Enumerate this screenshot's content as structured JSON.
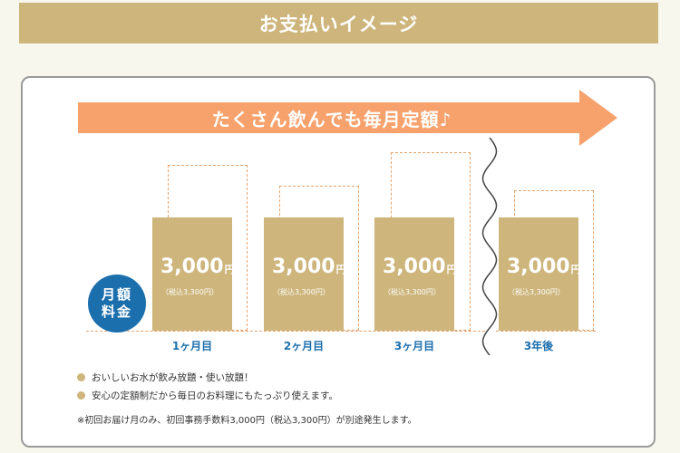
{
  "header": {
    "title": "お支払いイメージ"
  },
  "banner": {
    "text": "たくさん飲んでも毎月定額♪"
  },
  "monthly_badge": {
    "line1": "月額",
    "line2": "料金"
  },
  "periods": [
    {
      "label": "1ヶ月目",
      "price": "3,000",
      "unit": "円",
      "tax_note": "（税込3,300円）"
    },
    {
      "label": "2ヶ月目",
      "price": "3,000",
      "unit": "円",
      "tax_note": "（税込3,300円）"
    },
    {
      "label": "3ヶ月目",
      "price": "3,000",
      "unit": "円",
      "tax_note": "（税込3,300円）"
    },
    {
      "label": "3年後",
      "price": "3,000",
      "unit": "円",
      "tax_note": "（税込3,300円）"
    }
  ],
  "bullets": [
    "おいしいお水が飲み放題・使い放題！",
    "安心の定額制だから毎日のお料理にもたっぷり使えます。"
  ],
  "footnote": "※初回お届け月のみ、初回事務手数料3,000円（税込3,300円）が別途発生します。",
  "colors": {
    "gold": "#cdb57b",
    "orange_arrow": "#f7a26d",
    "blue": "#1c6fad",
    "dashed_outline": "#e6a26b"
  }
}
